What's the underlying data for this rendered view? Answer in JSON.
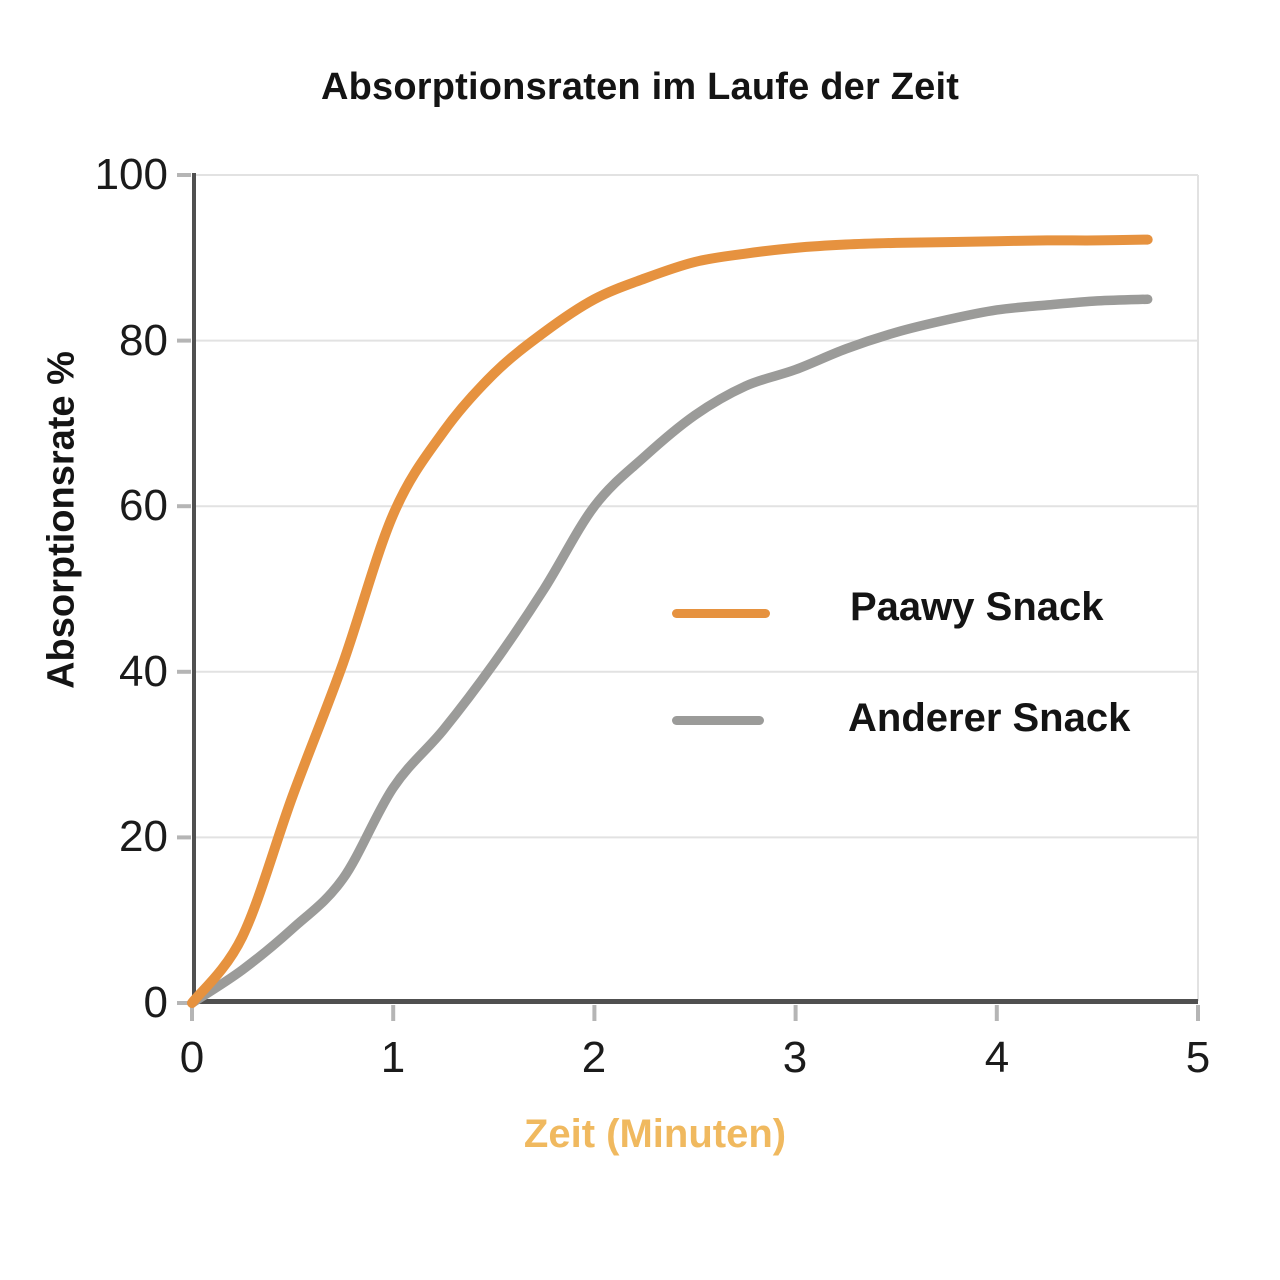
{
  "title": "Absorptionsraten im Laufe der Zeit",
  "colors": {
    "paawy_line": "#E6923F",
    "other_line": "#9B9B99",
    "axis": "#505050",
    "grid": "#E2E2E2",
    "tick_mark": "#B5B5B5",
    "x_axis_title": "#F0B95F",
    "text": "#141414"
  },
  "chart_data": {
    "type": "line",
    "title": "Absorptionsraten im Laufe der Zeit",
    "xlabel": "Zeit (Minuten)",
    "ylabel": "Absorptionsrate %",
    "xlim": [
      0,
      5
    ],
    "ylim": [
      0,
      100
    ],
    "xticks": [
      "0",
      "1",
      "2",
      "3",
      "4",
      "5"
    ],
    "yticks": [
      "0",
      "20",
      "40",
      "60",
      "80",
      "100"
    ],
    "grid": "horizontal",
    "legend_position": "center-right",
    "x": [
      0,
      0.25,
      0.5,
      0.75,
      1,
      1.25,
      1.5,
      1.75,
      2,
      2.25,
      2.5,
      2.75,
      3,
      3.25,
      3.5,
      3.75,
      4,
      4.25,
      4.5,
      4.75
    ],
    "series": [
      {
        "name": "Paawy Snack",
        "color": "#E6923F",
        "values": [
          0,
          8,
          25,
          41,
          59,
          69,
          76,
          81,
          85,
          87.5,
          89.5,
          90.5,
          91.2,
          91.6,
          91.8,
          91.9,
          92,
          92.1,
          92.1,
          92.2
        ]
      },
      {
        "name": "Anderer Snack",
        "color": "#9B9B99",
        "values": [
          0,
          4,
          9,
          15,
          26,
          33,
          41,
          50,
          60,
          66,
          71,
          74.5,
          76.5,
          79,
          81,
          82.5,
          83.7,
          84.3,
          84.8,
          85
        ]
      }
    ]
  }
}
